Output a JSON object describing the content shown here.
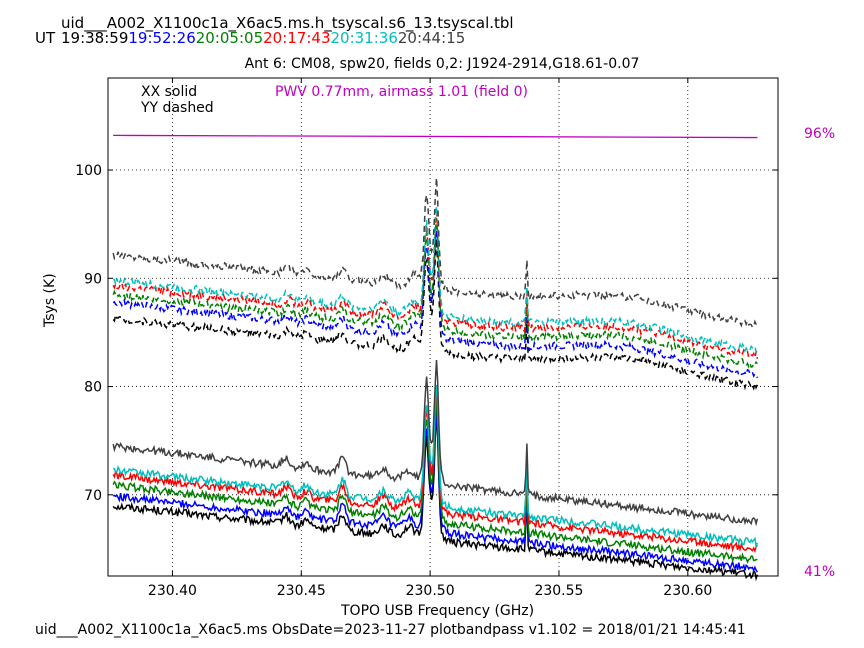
{
  "header": {
    "file": "uid___A002_X1100c1a_X6ac5.ms.h_tsyscal.s6_13.tsyscal.tbl",
    "ut_label": "UT",
    "times": [
      {
        "text": "19:38:59",
        "color": "#000000"
      },
      {
        "text": "19:52:26",
        "color": "#0000ff"
      },
      {
        "text": "20:05:05",
        "color": "#008000"
      },
      {
        "text": "20:17:43",
        "color": "#ff0000"
      },
      {
        "text": "20:31:36",
        "color": "#00bfbf"
      },
      {
        "text": "20:44:15",
        "color": "#404040"
      }
    ]
  },
  "footer": "uid___A002_X1100c1a_X6ac5.ms  ObsDate=2023-11-27   plotbandpass v1.102 = 2018/01/21 14:45:41",
  "chart_data": {
    "type": "line",
    "title": "Ant 6: CM08,  spw20,  fields 0,2: J1924-2914,G18.61-0.07",
    "xlabel": "TOPO USB Frequency (GHz)",
    "ylabel": "Tsys (K)",
    "xlim": [
      230.375,
      230.635
    ],
    "ylim": [
      62.5,
      108.5
    ],
    "xticks": [
      230.4,
      230.45,
      230.5,
      230.55,
      230.6
    ],
    "xtick_labels": [
      "230.40",
      "230.45",
      "230.50",
      "230.55",
      "230.60"
    ],
    "yticks": [
      70,
      80,
      90,
      100
    ],
    "grid": true,
    "legend_text": {
      "solid": "XX solid",
      "dashed": "YY dashed"
    },
    "pwv_text": "PWV 0.77mm, airmass 1.01 (field 0)",
    "pwv_color": "#c000c0",
    "transmission": {
      "top_label": "96%",
      "bottom_label": "41%",
      "color": "#c000c0",
      "left_value": 103.2,
      "right_value": 103.0
    },
    "series": [
      {
        "time": "19:38:59",
        "color": "#000000",
        "xx_start": 69.0,
        "xx_end": 62.6,
        "yy_start": 86.3,
        "yy_end": 80.0
      },
      {
        "time": "19:52:26",
        "color": "#0000ff",
        "xx_start": 69.9,
        "xx_end": 63.2,
        "yy_start": 87.8,
        "yy_end": 81.0
      },
      {
        "time": "20:05:05",
        "color": "#008000",
        "xx_start": 70.9,
        "xx_end": 64.0,
        "yy_start": 88.5,
        "yy_end": 82.0
      },
      {
        "time": "20:17:43",
        "color": "#ff0000",
        "xx_start": 71.8,
        "xx_end": 65.0,
        "yy_start": 89.3,
        "yy_end": 82.8
      },
      {
        "time": "20:31:36",
        "color": "#00bfbf",
        "xx_start": 72.3,
        "xx_end": 65.6,
        "yy_start": 89.8,
        "yy_end": 83.3
      },
      {
        "time": "20:44:15",
        "color": "#404040",
        "xx_start": 74.5,
        "xx_end": 67.5,
        "yy_start": 92.2,
        "yy_end": 85.7
      }
    ]
  }
}
